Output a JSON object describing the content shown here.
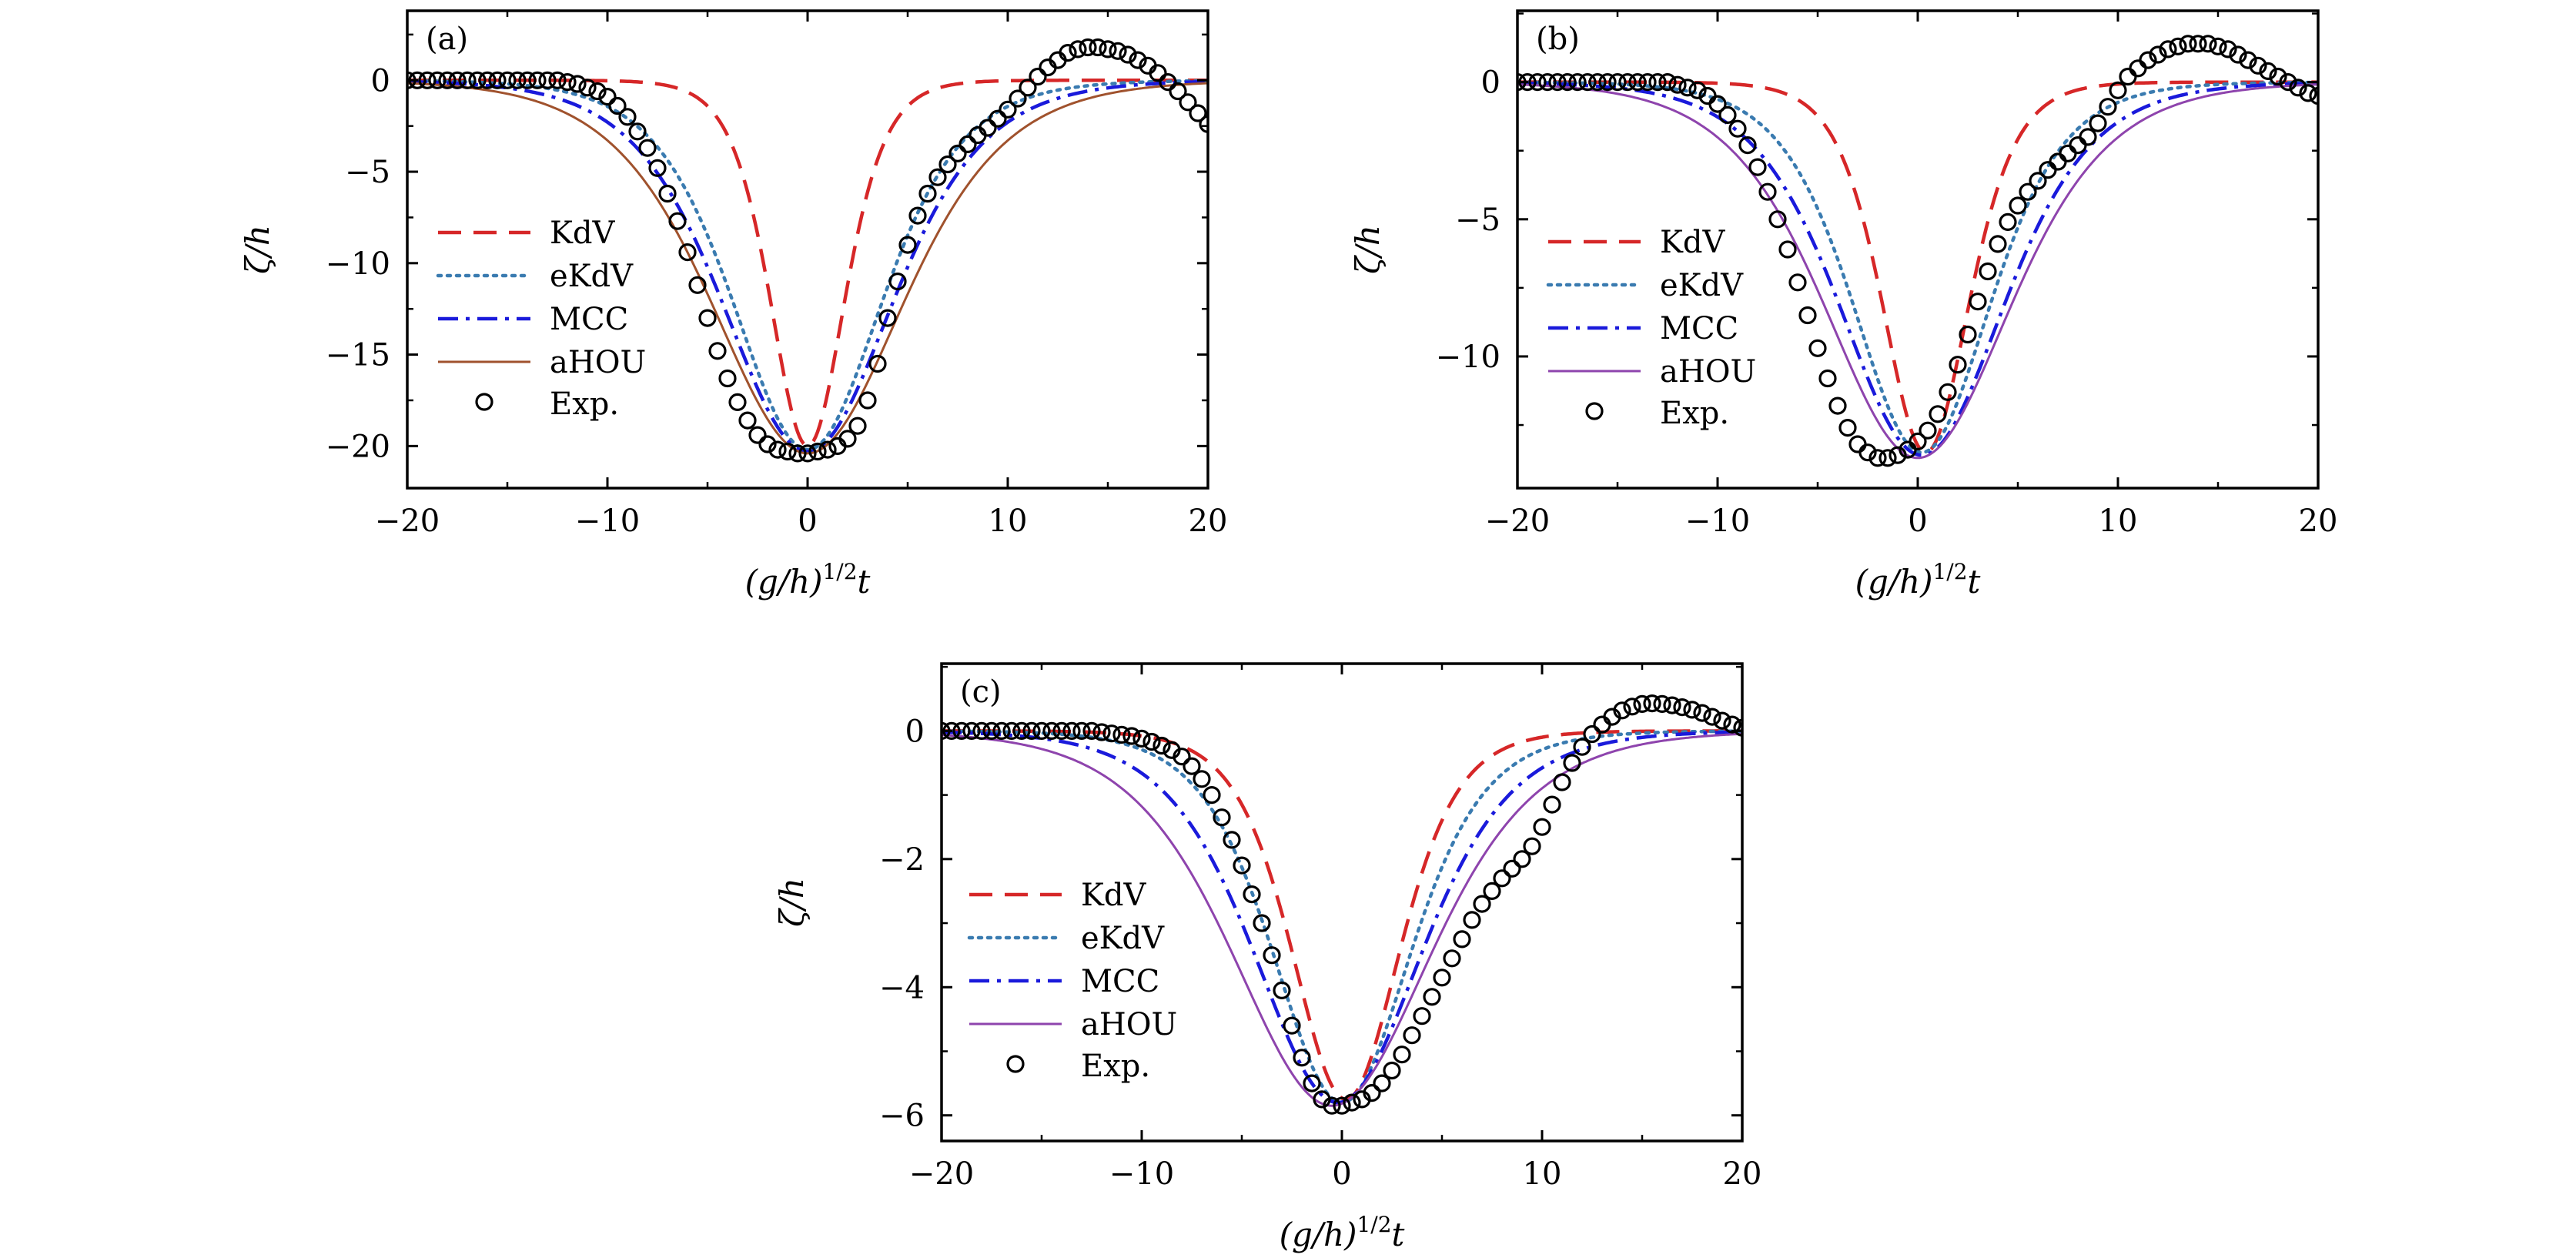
{
  "figure": {
    "panels": [
      "a",
      "b",
      "c"
    ]
  },
  "chart_data": [
    {
      "panel_label": "(a)",
      "type": "line",
      "xlabel": "(g/h)",
      "xlabel_exponent": "1/2",
      "xlabel_suffix": "t",
      "ylabel": "ζ/h",
      "xlim": [
        -20,
        20
      ],
      "ylim": [
        -22.3,
        3.8
      ],
      "xticks": [
        -20,
        -10,
        0,
        10,
        20
      ],
      "xtick_labels": [
        "−20",
        "−10",
        "0",
        "10",
        "20"
      ],
      "yticks": [
        0,
        -5,
        -10,
        -15,
        -20
      ],
      "ytick_labels": [
        "0",
        "−5",
        "−10",
        "−15",
        "−20"
      ],
      "grid": false,
      "legend_position": "left",
      "series": [
        {
          "name": "KdV",
          "style": "dashed",
          "color": "#d62728",
          "amplitude": -20.0,
          "center": 0.0,
          "width": 2.5
        },
        {
          "name": "eKdV",
          "style": "dotted",
          "color": "#3a7bb0",
          "amplitude": -20.2,
          "center": 0.0,
          "width": 5.0
        },
        {
          "name": "MCC",
          "style": "dashdot",
          "color": "#1a1adb",
          "amplitude": -20.3,
          "center": 0.0,
          "width": 5.7
        },
        {
          "name": "aHOU",
          "style": "solid",
          "color": "#a0522d",
          "amplitude": -20.4,
          "center": 0.0,
          "width": 6.4
        }
      ],
      "experiment": {
        "name": "Exp.",
        "x": [
          -20,
          -19.5,
          -19,
          -18.5,
          -18,
          -17.5,
          -17,
          -16.5,
          -16,
          -15.5,
          -15,
          -14.5,
          -14,
          -13.5,
          -13,
          -12.5,
          -12,
          -11.5,
          -11,
          -10.5,
          -10,
          -9.5,
          -9,
          -8.5,
          -8,
          -7.5,
          -7,
          -6.5,
          -6,
          -5.5,
          -5,
          -4.5,
          -4,
          -3.5,
          -3,
          -2.5,
          -2,
          -1.5,
          -1,
          -0.5,
          0,
          0.5,
          1,
          1.5,
          2,
          2.5,
          3,
          3.5,
          4,
          4.5,
          5,
          5.5,
          6,
          6.5,
          7,
          7.5,
          8,
          8.5,
          9,
          9.5,
          10,
          10.5,
          11,
          11.5,
          12,
          12.5,
          13,
          13.5,
          14,
          14.5,
          15,
          15.5,
          16,
          16.5,
          17,
          17.5,
          18,
          18.5,
          19,
          19.5,
          20
        ],
        "y": [
          0,
          0,
          0,
          0,
          0,
          0,
          0,
          0,
          0,
          0,
          0,
          0,
          0,
          0,
          0,
          0,
          -0.1,
          -0.2,
          -0.4,
          -0.6,
          -0.9,
          -1.4,
          -2.0,
          -2.8,
          -3.7,
          -4.8,
          -6.2,
          -7.7,
          -9.4,
          -11.2,
          -13.0,
          -14.8,
          -16.3,
          -17.6,
          -18.6,
          -19.4,
          -19.9,
          -20.2,
          -20.3,
          -20.4,
          -20.4,
          -20.3,
          -20.2,
          -20.0,
          -19.6,
          -18.9,
          -17.5,
          -15.5,
          -13.0,
          -11.0,
          -9.0,
          -7.4,
          -6.2,
          -5.3,
          -4.6,
          -4.0,
          -3.5,
          -3.0,
          -2.6,
          -2.1,
          -1.6,
          -1.0,
          -0.4,
          0.2,
          0.7,
          1.1,
          1.5,
          1.7,
          1.8,
          1.8,
          1.7,
          1.6,
          1.4,
          1.1,
          0.8,
          0.4,
          -0.1,
          -0.6,
          -1.2,
          -1.8,
          -2.4
        ]
      }
    },
    {
      "panel_label": "(b)",
      "type": "line",
      "xlabel": "(g/h)",
      "xlabel_exponent": "1/2",
      "xlabel_suffix": "t",
      "ylabel": "ζ/h",
      "xlim": [
        -20,
        20
      ],
      "ylim": [
        -14.8,
        2.6
      ],
      "xticks": [
        -20,
        -10,
        0,
        10,
        20
      ],
      "xtick_labels": [
        "−20",
        "−10",
        "0",
        "10",
        "20"
      ],
      "yticks": [
        0,
        -5,
        -10
      ],
      "ytick_labels": [
        "0",
        "−5",
        "−10"
      ],
      "grid": false,
      "legend_position": "left",
      "series": [
        {
          "name": "KdV",
          "style": "dashed",
          "color": "#d62728",
          "amplitude": -13.5,
          "center": 0.4,
          "width": 2.9
        },
        {
          "name": "eKdV",
          "style": "dotted",
          "color": "#3a7bb0",
          "amplitude": -13.5,
          "center": 0.2,
          "width": 4.6
        },
        {
          "name": "MCC",
          "style": "dashdot",
          "color": "#1a1adb",
          "amplitude": -13.6,
          "center": 0.2,
          "width": 5.5
        },
        {
          "name": "aHOU",
          "style": "solid",
          "color": "#8e44ad",
          "amplitude": -13.7,
          "center": 0.0,
          "width": 6.2
        }
      ],
      "experiment": {
        "name": "Exp.",
        "x": [
          -20,
          -19.5,
          -19,
          -18.5,
          -18,
          -17.5,
          -17,
          -16.5,
          -16,
          -15.5,
          -15,
          -14.5,
          -14,
          -13.5,
          -13,
          -12.5,
          -12,
          -11.5,
          -11,
          -10.5,
          -10,
          -9.5,
          -9,
          -8.5,
          -8,
          -7.5,
          -7,
          -6.5,
          -6,
          -5.5,
          -5,
          -4.5,
          -4,
          -3.5,
          -3,
          -2.5,
          -2,
          -1.5,
          -1,
          -0.5,
          0,
          0.5,
          1,
          1.5,
          2,
          2.5,
          3,
          3.5,
          4,
          4.5,
          5,
          5.5,
          6,
          6.5,
          7,
          7.5,
          8,
          8.5,
          9,
          9.5,
          10,
          10.5,
          11,
          11.5,
          12,
          12.5,
          13,
          13.5,
          14,
          14.5,
          15,
          15.5,
          16,
          16.5,
          17,
          17.5,
          18,
          18.5,
          19,
          19.5,
          20
        ],
        "y": [
          0,
          0,
          0,
          0,
          0,
          0,
          0,
          0,
          0,
          0,
          0,
          0,
          0,
          0,
          0,
          0,
          -0.1,
          -0.2,
          -0.3,
          -0.5,
          -0.8,
          -1.2,
          -1.7,
          -2.3,
          -3.1,
          -4.0,
          -5.0,
          -6.1,
          -7.3,
          -8.5,
          -9.7,
          -10.8,
          -11.8,
          -12.6,
          -13.2,
          -13.5,
          -13.7,
          -13.7,
          -13.6,
          -13.4,
          -13.1,
          -12.7,
          -12.1,
          -11.3,
          -10.3,
          -9.2,
          -8.0,
          -6.9,
          -5.9,
          -5.1,
          -4.5,
          -4.0,
          -3.6,
          -3.2,
          -2.9,
          -2.6,
          -2.3,
          -2.0,
          -1.5,
          -0.9,
          -0.3,
          0.2,
          0.5,
          0.8,
          1.0,
          1.2,
          1.3,
          1.4,
          1.4,
          1.4,
          1.3,
          1.2,
          1.0,
          0.8,
          0.6,
          0.4,
          0.2,
          0.0,
          -0.2,
          -0.4,
          -0.5
        ]
      }
    },
    {
      "panel_label": "(c)",
      "type": "line",
      "xlabel": "(g/h)",
      "xlabel_exponent": "1/2",
      "xlabel_suffix": "t",
      "ylabel": "ζ/h",
      "xlim": [
        -20,
        20
      ],
      "ylim": [
        -6.4,
        1.05
      ],
      "xticks": [
        -20,
        -10,
        0,
        10,
        20
      ],
      "xtick_labels": [
        "−20",
        "−10",
        "0",
        "10",
        "20"
      ],
      "yticks": [
        0,
        -2,
        -4,
        -6
      ],
      "ytick_labels": [
        "0",
        "−2",
        "−4",
        "−6"
      ],
      "grid": false,
      "legend_position": "left",
      "series": [
        {
          "name": "KdV",
          "style": "dashed",
          "color": "#d62728",
          "amplitude": -5.75,
          "center": 0.2,
          "width": 3.6
        },
        {
          "name": "eKdV",
          "style": "dotted",
          "color": "#3a7bb0",
          "amplitude": -5.8,
          "center": 0.0,
          "width": 4.6
        },
        {
          "name": "MCC",
          "style": "dashdot",
          "color": "#1a1adb",
          "amplitude": -5.8,
          "center": -0.2,
          "width": 5.6
        },
        {
          "name": "aHOU",
          "style": "solid",
          "color": "#8e44ad",
          "amplitude": -5.85,
          "center": -0.5,
          "width": 6.6
        }
      ],
      "experiment": {
        "name": "Exp.",
        "x": [
          -20,
          -19.5,
          -19,
          -18.5,
          -18,
          -17.5,
          -17,
          -16.5,
          -16,
          -15.5,
          -15,
          -14.5,
          -14,
          -13.5,
          -13,
          -12.5,
          -12,
          -11.5,
          -11,
          -10.5,
          -10,
          -9.5,
          -9,
          -8.5,
          -8,
          -7.5,
          -7,
          -6.5,
          -6,
          -5.5,
          -5,
          -4.5,
          -4,
          -3.5,
          -3,
          -2.5,
          -2,
          -1.5,
          -1,
          -0.5,
          0,
          0.5,
          1,
          1.5,
          2,
          2.5,
          3,
          3.5,
          4,
          4.5,
          5,
          5.5,
          6,
          6.5,
          7,
          7.5,
          8,
          8.5,
          9,
          9.5,
          10,
          10.5,
          11,
          11.5,
          12,
          12.5,
          13,
          13.5,
          14,
          14.5,
          15,
          15.5,
          16,
          16.5,
          17,
          17.5,
          18,
          18.5,
          19,
          19.5,
          20
        ],
        "y": [
          0,
          0,
          0,
          0,
          0,
          0,
          0,
          0,
          0,
          0,
          0,
          0,
          0,
          0,
          0,
          0,
          -0.02,
          -0.04,
          -0.06,
          -0.08,
          -0.12,
          -0.17,
          -0.23,
          -0.3,
          -0.4,
          -0.55,
          -0.75,
          -1.0,
          -1.35,
          -1.7,
          -2.1,
          -2.55,
          -3.0,
          -3.5,
          -4.05,
          -4.6,
          -5.1,
          -5.5,
          -5.75,
          -5.85,
          -5.85,
          -5.8,
          -5.75,
          -5.65,
          -5.5,
          -5.3,
          -5.05,
          -4.75,
          -4.45,
          -4.15,
          -3.85,
          -3.55,
          -3.25,
          -2.95,
          -2.7,
          -2.5,
          -2.3,
          -2.15,
          -2.0,
          -1.8,
          -1.5,
          -1.15,
          -0.8,
          -0.5,
          -0.25,
          -0.05,
          0.1,
          0.22,
          0.32,
          0.38,
          0.42,
          0.43,
          0.42,
          0.4,
          0.37,
          0.33,
          0.28,
          0.22,
          0.16,
          0.1,
          0.05
        ]
      }
    }
  ]
}
